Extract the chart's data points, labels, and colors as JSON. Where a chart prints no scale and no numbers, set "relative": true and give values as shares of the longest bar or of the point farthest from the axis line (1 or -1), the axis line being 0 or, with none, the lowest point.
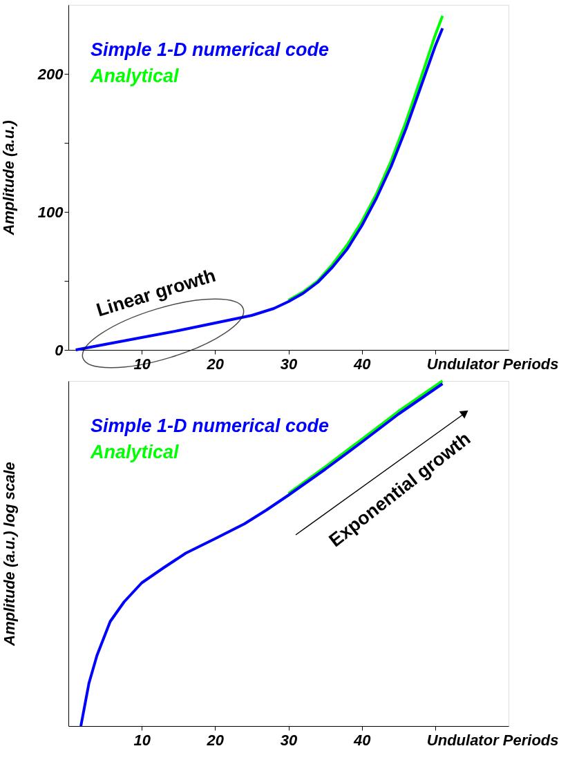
{
  "chart_data": [
    {
      "type": "line",
      "xlabel": "Undulator Periods",
      "ylabel": "Amplitude  (a.u.)",
      "xlim": [
        0,
        60
      ],
      "ylim": [
        0,
        250
      ],
      "xticks": [
        10,
        20,
        30,
        40,
        {
          "value": 50,
          "label": null
        }
      ],
      "yticks": [
        0,
        {
          "value": 50,
          "label": null
        },
        100,
        {
          "value": 150,
          "label": null
        },
        200
      ],
      "grid": false,
      "legend": "top left",
      "marker": "none",
      "line_style": "solid",
      "annotations": [
        "Linear growth"
      ],
      "series": [
        {
          "name": "Simple  1-D numerical code",
          "color": "#0000ff",
          "x": [
            1,
            5,
            10,
            15,
            20,
            25,
            28,
            30,
            32,
            34,
            36,
            38,
            40,
            42,
            44,
            46,
            48,
            50,
            51
          ],
          "values": [
            0,
            4,
            9,
            14,
            19.5,
            25,
            30,
            35,
            41,
            49,
            60,
            73,
            90,
            110,
            133,
            160,
            190,
            220,
            233
          ]
        },
        {
          "name": "Analytical",
          "color": "#00ff00",
          "x": [
            30,
            32,
            34,
            36,
            38,
            40,
            42,
            44,
            46,
            48,
            50,
            51
          ],
          "values": [
            36,
            42,
            50,
            62,
            76,
            93,
            113,
            137,
            165,
            196,
            228,
            242
          ]
        }
      ]
    },
    {
      "type": "line",
      "xlabel": "Undulator Periods",
      "ylabel": "Amplitude  (a.u.)  log scale",
      "xlim": [
        0,
        60
      ],
      "relative": true,
      "xticks": [
        10,
        20,
        30,
        40,
        {
          "value": 50,
          "label": null
        }
      ],
      "grid": false,
      "legend": "top left",
      "marker": "none",
      "line_style": "solid",
      "annotations": [
        "Exponential growth"
      ],
      "series": [
        {
          "name": "Simple  1-D numerical code",
          "color": "#0000ff",
          "x": [
            1.7,
            2.8,
            3.9,
            5.7,
            7.6,
            10,
            13,
            16,
            20,
            24,
            27,
            30,
            35,
            40,
            45,
            51
          ],
          "values": [
            0,
            0.124,
            0.205,
            0.303,
            0.36,
            0.415,
            0.459,
            0.501,
            0.543,
            0.586,
            0.626,
            0.669,
            0.744,
            0.823,
            0.904,
            0.992
          ]
        },
        {
          "name": "Analytical",
          "color": "#00ff00",
          "x": [
            30,
            35,
            40,
            45,
            51
          ],
          "values": [
            0.674,
            0.751,
            0.831,
            0.912,
            1
          ]
        }
      ]
    }
  ]
}
